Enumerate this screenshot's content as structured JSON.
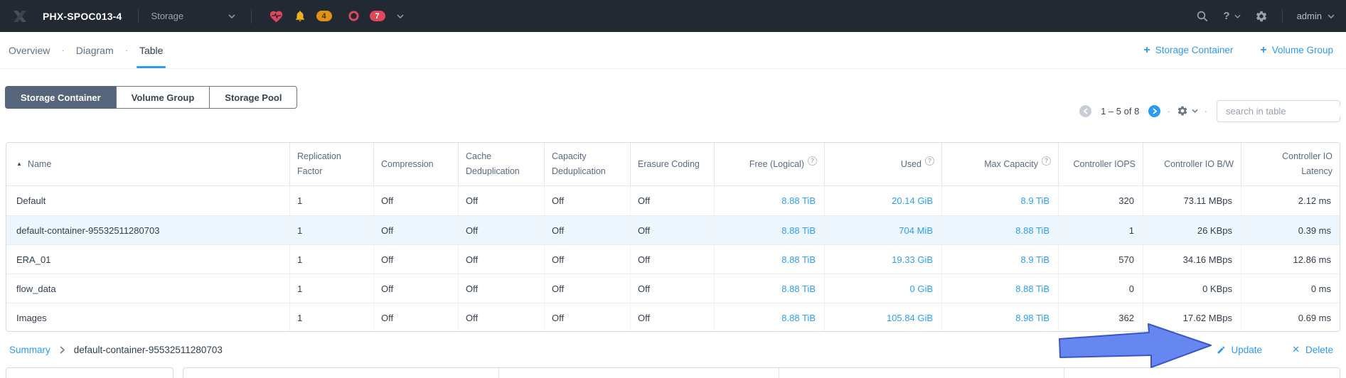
{
  "topbar": {
    "cluster_name": "PHX-SPOC013-4",
    "nav_menu_label": "Storage",
    "alert_badge_count": "4",
    "event_badge_count": "7",
    "help_label": "?",
    "user_name": "admin"
  },
  "tabbar": {
    "separator": "·",
    "tabs": [
      {
        "label": "Overview",
        "active": false
      },
      {
        "label": "Diagram",
        "active": false
      },
      {
        "label": "Table",
        "active": true
      }
    ],
    "plus": "+",
    "actions": [
      {
        "label": "Storage Container"
      },
      {
        "label": "Volume Group"
      }
    ]
  },
  "view_switcher": {
    "buttons": [
      {
        "label": "Storage Container",
        "selected": true
      },
      {
        "label": "Volume Group",
        "selected": false
      },
      {
        "label": "Storage Pool",
        "selected": false
      }
    ]
  },
  "toolbar": {
    "pagination_text": "1 – 5 of 8",
    "search_placeholder": "search in table"
  },
  "table": {
    "columns": [
      {
        "label": "Name",
        "align": "left",
        "sorted": "asc",
        "info": false
      },
      {
        "label": "Replication Factor",
        "align": "left",
        "info": false
      },
      {
        "label": "Compression",
        "align": "left",
        "info": false
      },
      {
        "label": "Cache Deduplication",
        "align": "left",
        "info": false
      },
      {
        "label": "Capacity Deduplication",
        "align": "left",
        "info": false
      },
      {
        "label": "Erasure Coding",
        "align": "left",
        "info": false
      },
      {
        "label": "Free (Logical)",
        "align": "right",
        "info": true
      },
      {
        "label": "Used",
        "align": "right",
        "info": true
      },
      {
        "label": "Max Capacity",
        "align": "right",
        "info": true
      },
      {
        "label": "Controller IOPS",
        "align": "right",
        "info": false
      },
      {
        "label": "Controller IO B/W",
        "align": "right",
        "info": false
      },
      {
        "label": "Controller IO Latency",
        "align": "right",
        "info": false
      }
    ],
    "link_column_indexes": [
      6,
      7,
      8
    ],
    "rows": [
      {
        "selected": false,
        "cells": [
          "Default",
          "1",
          "Off",
          "Off",
          "Off",
          "Off",
          "8.88 TiB",
          "20.14 GiB",
          "8.9 TiB",
          "320",
          "73.11 MBps",
          "2.12 ms"
        ]
      },
      {
        "selected": true,
        "cells": [
          "default-container-95532511280703",
          "1",
          "Off",
          "Off",
          "Off",
          "Off",
          "8.88 TiB",
          "704 MiB",
          "8.88 TiB",
          "1",
          "26 KBps",
          "0.39 ms"
        ]
      },
      {
        "selected": false,
        "cells": [
          "ERA_01",
          "1",
          "Off",
          "Off",
          "Off",
          "Off",
          "8.88 TiB",
          "19.33 GiB",
          "8.9 TiB",
          "570",
          "34.16 MBps",
          "12.86 ms"
        ]
      },
      {
        "selected": false,
        "cells": [
          "flow_data",
          "1",
          "Off",
          "Off",
          "Off",
          "Off",
          "8.88 TiB",
          "0 GiB",
          "8.88 TiB",
          "0",
          "0 KBps",
          "0 ms"
        ]
      },
      {
        "selected": false,
        "cells": [
          "Images",
          "1",
          "Off",
          "Off",
          "Off",
          "Off",
          "8.88 TiB",
          "105.84 GiB",
          "8.98 TiB",
          "362",
          "17.62 MBps",
          "0.69 ms"
        ]
      }
    ]
  },
  "detail_bar": {
    "breadcrumb_link": "Summary",
    "breadcrumb_current": "default-container-95532511280703",
    "update_label": "Update",
    "delete_label": "Delete"
  },
  "annotation": {
    "type": "arrow",
    "points_at": "Update button"
  },
  "colors": {
    "accent_blue": "#2d9bf0",
    "topbar_bg": "#232932",
    "selected_row_bg": "#eef6fd",
    "segment_selected_bg": "#56657a",
    "alert_badge": "#df9215",
    "error_badge": "#e0475b",
    "bell_icon": "#efaf1f",
    "heart_icon": "#e0475b",
    "arrow_fill": "#6687ef",
    "arrow_stroke": "#3b55c8"
  }
}
